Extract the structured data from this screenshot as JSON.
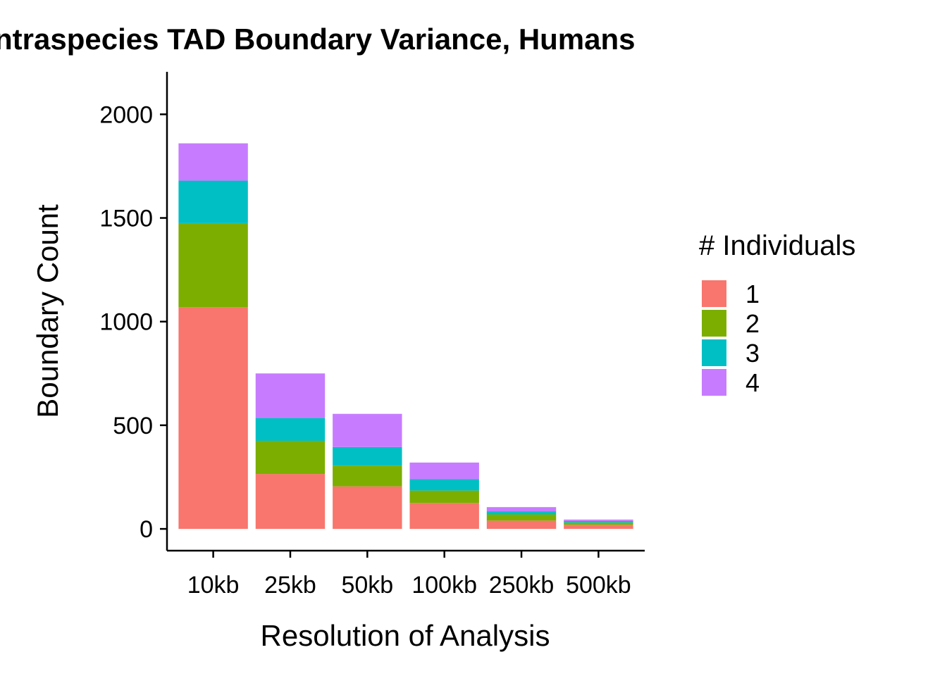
{
  "chart_data": {
    "type": "bar",
    "stacked": true,
    "title": "ntraspecies TAD Boundary Variance, Humans",
    "xlabel": "Resolution of Analysis",
    "ylabel": "Boundary Count",
    "categories": [
      "10kb",
      "25kb",
      "50kb",
      "100kb",
      "250kb",
      "500kb"
    ],
    "ylim": [
      -105,
      2205
    ],
    "yticks": [
      0,
      500,
      1000,
      1500,
      2000
    ],
    "ytick_labels": [
      "0",
      "500",
      "1000",
      "1500",
      "2000"
    ],
    "grid": false,
    "legend": {
      "title": "# Individuals",
      "placement": "right"
    },
    "series": [
      {
        "name": "1",
        "color": "#F8766D",
        "values": [
          1070,
          265,
          205,
          125,
          40,
          20
        ]
      },
      {
        "name": "2",
        "color": "#7CAE00",
        "values": [
          405,
          160,
          100,
          60,
          30,
          10
        ]
      },
      {
        "name": "3",
        "color": "#00BFC4",
        "values": [
          205,
          110,
          90,
          55,
          15,
          8
        ]
      },
      {
        "name": "4",
        "color": "#C77CFF",
        "values": [
          180,
          215,
          160,
          80,
          20,
          7
        ]
      }
    ]
  }
}
